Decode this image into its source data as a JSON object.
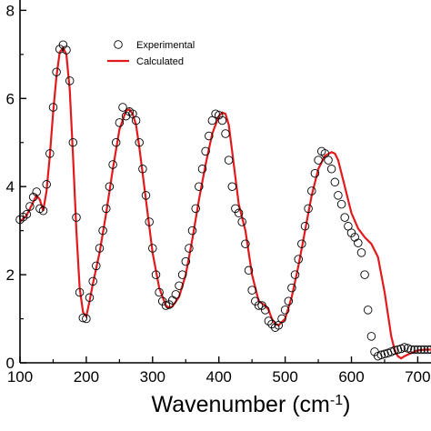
{
  "chart_data": {
    "type": "scatter",
    "xlabel": "Wavenumber (cm",
    "xlabel_sup": "-1",
    "xlabel_close": ")",
    "ylabel": "",
    "x_ticks": [
      "100",
      "200",
      "300",
      "400",
      "500",
      "600",
      "700"
    ],
    "y_ticks": [
      "0",
      "2",
      "4",
      "6",
      "8"
    ],
    "xlim": [
      100,
      720
    ],
    "ylim": [
      0,
      0.84
    ],
    "grid": false,
    "legend": "top-left",
    "series": [
      {
        "name": "Experimental",
        "style": "open-circles",
        "color": "#000000",
        "x": [
          100,
          105,
          110,
          115,
          120,
          125,
          130,
          135,
          140,
          145,
          150,
          155,
          160,
          165,
          170,
          175,
          180,
          185,
          190,
          195,
          200,
          205,
          210,
          215,
          220,
          225,
          230,
          235,
          240,
          245,
          250,
          255,
          260,
          265,
          270,
          275,
          280,
          285,
          290,
          295,
          300,
          305,
          310,
          315,
          320,
          325,
          330,
          335,
          340,
          345,
          350,
          355,
          360,
          365,
          370,
          375,
          380,
          385,
          390,
          395,
          400,
          405,
          410,
          415,
          420,
          425,
          430,
          435,
          440,
          445,
          450,
          455,
          460,
          465,
          470,
          475,
          480,
          485,
          490,
          495,
          500,
          505,
          510,
          515,
          520,
          525,
          530,
          535,
          540,
          545,
          550,
          555,
          560,
          565,
          570,
          575,
          580,
          585,
          590,
          595,
          600,
          605,
          610,
          615,
          620,
          625,
          630,
          635,
          640,
          645,
          650,
          655,
          660,
          665,
          670,
          675,
          680,
          685,
          690,
          695,
          700,
          705,
          710,
          715,
          720
        ],
        "y": [
          0.325,
          0.331,
          0.337,
          0.355,
          0.376,
          0.388,
          0.35,
          0.345,
          0.405,
          0.475,
          0.58,
          0.66,
          0.712,
          0.722,
          0.71,
          0.64,
          0.5,
          0.33,
          0.16,
          0.102,
          0.1,
          0.148,
          0.185,
          0.22,
          0.26,
          0.3,
          0.35,
          0.4,
          0.45,
          0.5,
          0.545,
          0.58,
          0.56,
          0.57,
          0.565,
          0.55,
          0.5,
          0.44,
          0.38,
          0.32,
          0.26,
          0.2,
          0.16,
          0.14,
          0.13,
          0.132,
          0.142,
          0.155,
          0.175,
          0.2,
          0.23,
          0.26,
          0.3,
          0.35,
          0.4,
          0.44,
          0.48,
          0.515,
          0.55,
          0.565,
          0.562,
          0.55,
          0.52,
          0.46,
          0.4,
          0.35,
          0.34,
          0.32,
          0.27,
          0.21,
          0.165,
          0.14,
          0.13,
          0.13,
          0.12,
          0.095,
          0.088,
          0.08,
          0.085,
          0.1,
          0.12,
          0.14,
          0.17,
          0.2,
          0.235,
          0.27,
          0.31,
          0.35,
          0.39,
          0.43,
          0.46,
          0.48,
          0.475,
          0.46,
          0.44,
          0.41,
          0.38,
          0.36,
          0.33,
          0.31,
          0.295,
          0.285,
          0.272,
          0.25,
          0.2,
          0.12,
          0.06,
          0.025,
          0.015,
          0.018,
          0.02,
          0.022,
          0.025,
          0.028,
          0.03,
          0.032,
          0.035,
          0.033,
          0.03,
          0.03,
          0.03,
          0.03,
          0.03,
          0.03,
          0.03
        ]
      },
      {
        "name": "Calculated",
        "style": "line",
        "color": "#e31a1c",
        "x": [
          100,
          110,
          120,
          125,
          130,
          135,
          140,
          145,
          150,
          155,
          160,
          165,
          170,
          175,
          180,
          185,
          190,
          195,
          200,
          205,
          210,
          220,
          230,
          240,
          250,
          260,
          265,
          270,
          275,
          280,
          290,
          300,
          310,
          320,
          325,
          330,
          340,
          350,
          360,
          370,
          380,
          390,
          400,
          405,
          410,
          415,
          420,
          430,
          440,
          450,
          460,
          470,
          475,
          480,
          485,
          490,
          500,
          510,
          520,
          530,
          540,
          550,
          560,
          570,
          575,
          580,
          590,
          600,
          610,
          620,
          630,
          640,
          650,
          660,
          665,
          670,
          675,
          680,
          690,
          700,
          710,
          720
        ],
        "y": [
          0.32,
          0.335,
          0.365,
          0.38,
          0.37,
          0.345,
          0.39,
          0.47,
          0.57,
          0.65,
          0.705,
          0.715,
          0.7,
          0.62,
          0.47,
          0.3,
          0.17,
          0.115,
          0.105,
          0.14,
          0.18,
          0.25,
          0.34,
          0.44,
          0.53,
          0.572,
          0.575,
          0.565,
          0.54,
          0.49,
          0.37,
          0.25,
          0.17,
          0.13,
          0.125,
          0.128,
          0.15,
          0.2,
          0.28,
          0.37,
          0.45,
          0.52,
          0.56,
          0.568,
          0.565,
          0.54,
          0.48,
          0.36,
          0.3,
          0.2,
          0.14,
          0.13,
          0.12,
          0.1,
          0.088,
          0.085,
          0.1,
          0.15,
          0.22,
          0.3,
          0.38,
          0.44,
          0.47,
          0.478,
          0.475,
          0.46,
          0.4,
          0.34,
          0.305,
          0.285,
          0.27,
          0.24,
          0.16,
          0.06,
          0.03,
          0.015,
          0.01,
          0.015,
          0.022,
          0.028,
          0.03,
          0.03
        ]
      }
    ]
  }
}
